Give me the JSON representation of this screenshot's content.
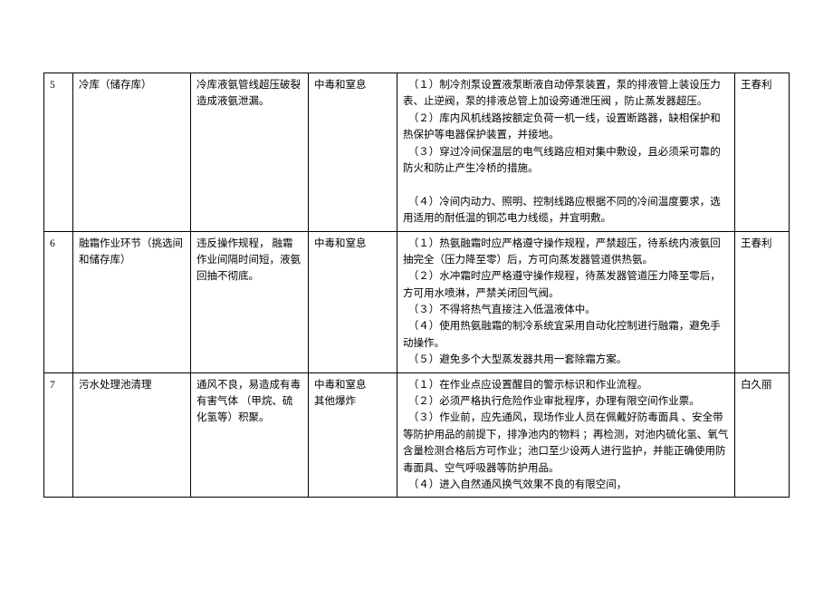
{
  "rows": [
    {
      "num": "5",
      "place": "冷库（储存库）",
      "cause": "冷库液氨管线超压破裂造成液氨泄漏。",
      "type": "中毒和窒息",
      "measures": "　（１）制冷剂泵设置液泵断液自动停泵装置，泵的排液管上装设压力表、止逆阀，泵的排液总管上加设旁通泄压阀 ，防止蒸发器超压。\n　（２）库内风机线路按额定负荷一机一线，设置断路器，缺相保护和热保护等电器保护装置，并接地。\n　（３）穿过冷间保温层的电气线路应相对集中敷设，且必须采可靠的防火和防止产生冷桥的措施。\n\n　（４）冷间内动力、照明、控制线路应根据不同的冷间温度要求，选用适用的耐低温的铜芯电力线缆，并宜明敷。",
      "resp": "王春利"
    },
    {
      "num": "6",
      "place": "融霜作业环节（挑选间和储存库）",
      "cause": "违反操作规程， 融霜作业间隔时间短，液氨回抽不彻底。",
      "type": "中毒和窒息",
      "measures": "　（１）热氨融霜时应严格遵守操作规程，严禁超压，待系统内液氨回抽完全（压力降至零）后，方可向蒸发器管道供热氨。\n　（２）水冲霜时应严格遵守操作规程，待蒸发器管道压力降至零后，方可用水喷淋，严禁关闭回气阀。\n　（３）不得将热气直接注入低温液体中。\n　（４）使用热氨融霜的制冷系统宜采用自动化控制进行融霜，避免手动操作。\n　（５）避免多个大型蒸发器共用一套除霜方案。",
      "resp": "王春利"
    },
    {
      "num": "7",
      "place": "污水处理池清理",
      "cause": "通风不良，易造成有毒有害气体 （甲烷、硫化氢等）积聚。",
      "type": "中毒和窒息\n其他爆炸",
      "measures": "　（１）在作业点应设置醒目的警示标识和作业流程。\n　（２）必须严格执行危险作业审批程序，办理有限空间作业票。\n　（３）作业前，应先通风，现场作业人员在佩戴好防毒面具 、安全带等防护用品的前提下，排净池内的物料 ；再检测，对池内硫化氢、氧气含量检测合格后方可作业；池口至少设两人进行监护，并能正确使用防毒面具、空气呼吸器等防护用品。\n　（４）进入自然通风换气效果不良的有限空间，",
      "resp": "白久丽"
    }
  ]
}
